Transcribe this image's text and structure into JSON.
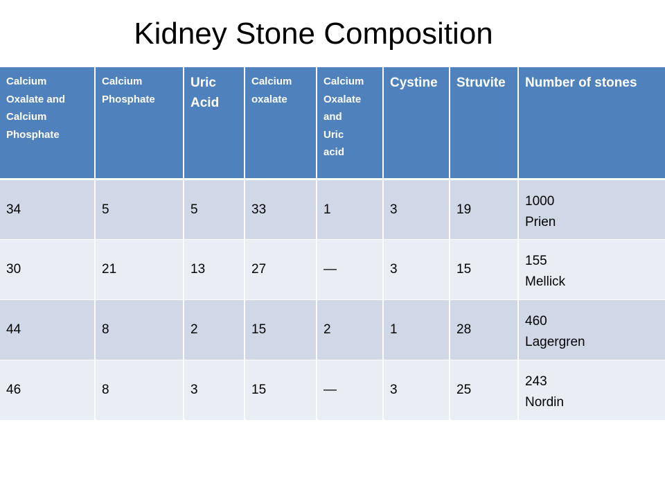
{
  "title": "Kidney Stone Composition",
  "table": {
    "headers": [
      {
        "lines": [
          "Calcium",
          "Oxalate and",
          "Calcium",
          "Phosphate"
        ],
        "size": "small"
      },
      {
        "lines": [
          "Calcium",
          "Phosphate"
        ],
        "size": "small"
      },
      {
        "lines": [
          "Uric",
          "Acid"
        ],
        "size": "large"
      },
      {
        "lines": [
          "Calcium",
          "oxalate"
        ],
        "size": "small"
      },
      {
        "lines": [
          "Calcium",
          "Oxalate",
          "and",
          "Uric",
          "acid"
        ],
        "size": "small"
      },
      {
        "lines": [
          "Cystine"
        ],
        "size": "large"
      },
      {
        "lines": [
          "Struvite"
        ],
        "size": "large"
      },
      {
        "lines": [
          "Number of stones"
        ],
        "size": "large"
      }
    ],
    "rows": [
      {
        "values": [
          "34",
          "5",
          "5",
          "33",
          "1",
          "3",
          "19"
        ],
        "count": "1000",
        "source": "Prien"
      },
      {
        "values": [
          "30",
          "21",
          "13",
          "27",
          "—",
          "3",
          "15"
        ],
        "count": "155",
        "source": "Mellick"
      },
      {
        "values": [
          "44",
          "8",
          "2",
          "15",
          "2",
          "1",
          "28"
        ],
        "count": "460",
        "source": "Lagergren"
      },
      {
        "values": [
          "46",
          "8",
          "3",
          "15",
          "—",
          "3",
          "25"
        ],
        "count": "243",
        "source": "Nordin"
      }
    ]
  }
}
